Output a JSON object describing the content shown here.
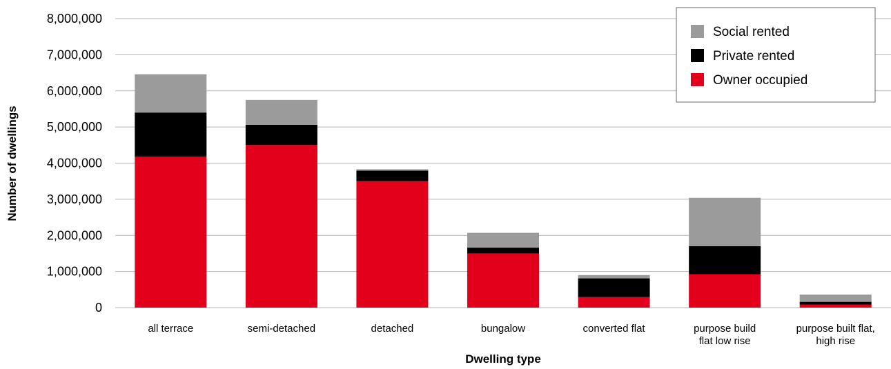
{
  "chart_data": {
    "type": "bar",
    "stacked": true,
    "categories": [
      "all terrace",
      "semi-detached",
      "detached",
      "bungalow",
      "converted flat",
      "purpose build\nflat low rise",
      "purpose built flat,\nhigh rise"
    ],
    "series": [
      {
        "name": "Owner occupied",
        "color": "#e2001a",
        "values": [
          4180000,
          4500000,
          3500000,
          1500000,
          290000,
          920000,
          80000
        ]
      },
      {
        "name": "Private rented",
        "color": "#000000",
        "values": [
          1220000,
          560000,
          290000,
          160000,
          520000,
          780000,
          80000
        ]
      },
      {
        "name": "Social rented",
        "color": "#9b9b9b",
        "values": [
          1060000,
          690000,
          40000,
          410000,
          90000,
          1340000,
          200000
        ]
      }
    ],
    "legend_order": [
      "Social rented",
      "Private rented",
      "Owner occupied"
    ],
    "legend_position": "top-right",
    "ylim": [
      0,
      8000000
    ],
    "yticks": [
      "0",
      "1,000,000",
      "2,000,000",
      "3,000,000",
      "4,000,000",
      "5,000,000",
      "6,000,000",
      "7,000,000",
      "8,000,000"
    ],
    "xlabel": "Dwelling type",
    "ylabel": "Number of dwellings",
    "grid": true
  }
}
